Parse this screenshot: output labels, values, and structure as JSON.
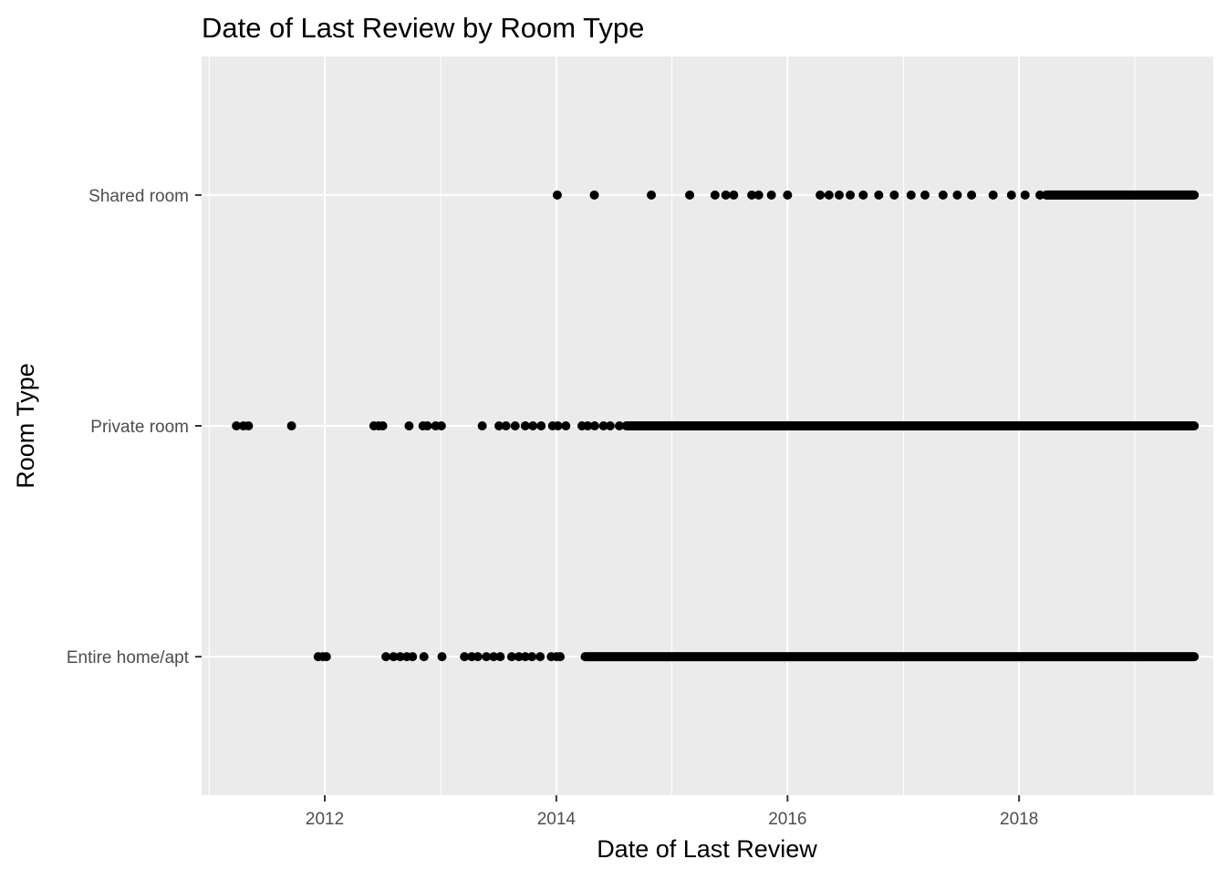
{
  "chart_data": {
    "type": "scatter",
    "title": "Date of Last Review by Room Type",
    "xlabel": "Date of Last Review",
    "ylabel": "Room Type",
    "x_axis_kind": "date",
    "xlim": [
      "2010-12-08",
      "2019-09-06"
    ],
    "x_ticks": [
      2012,
      2014,
      2016,
      2018
    ],
    "x_tick_labels": [
      "2012",
      "2014",
      "2016",
      "2018"
    ],
    "categories": [
      "Entire home/apt",
      "Private room",
      "Shared room"
    ],
    "grid": true,
    "legend": "none",
    "colors": {
      "panel": "#EBEBEB",
      "grid": "#FFFFFF",
      "point": "#000000",
      "text": "#4D4D4D",
      "title": "#000000"
    },
    "series": [
      {
        "category": "Entire home/apt",
        "dates": [
          "2011-12-11",
          "2011-12-26",
          "2012-01-06",
          "2012-07-12",
          "2012-08-05",
          "2012-08-26",
          "2012-09-16",
          "2012-10-04",
          "2012-11-09",
          "2013-01-05",
          "2013-03-17",
          "2013-04-09",
          "2013-04-28",
          "2013-05-25",
          "2013-06-17",
          "2013-07-08",
          "2013-08-13",
          "2013-09-05",
          "2013-09-25",
          "2013-10-16",
          "2013-11-11",
          "2013-12-16",
          "2014-01-02",
          "2014-01-13"
        ],
        "dense_ranges": [
          [
            "2014-04-02",
            "2019-07-08"
          ]
        ]
      },
      {
        "category": "Private room",
        "dates": [
          "2011-03-28",
          "2011-04-19",
          "2011-05-05",
          "2011-09-18",
          "2012-06-04",
          "2012-06-19",
          "2012-07-02",
          "2012-09-23",
          "2012-11-06",
          "2012-11-20",
          "2012-12-16",
          "2013-01-03",
          "2013-05-12",
          "2013-07-04",
          "2013-07-26",
          "2013-08-24",
          "2013-09-25",
          "2013-10-19",
          "2013-11-14",
          "2013-12-20",
          "2014-01-06",
          "2014-01-31",
          "2014-03-23",
          "2014-04-10",
          "2014-05-02",
          "2014-05-30",
          "2014-06-20",
          "2014-07-19"
        ],
        "dense_ranges": [
          [
            "2014-08-10",
            "2019-07-08"
          ]
        ]
      },
      {
        "category": "Shared room",
        "dates": [
          "2014-01-04",
          "2014-05-01",
          "2014-10-28",
          "2015-02-26",
          "2015-05-17",
          "2015-06-20",
          "2015-07-15",
          "2015-09-10",
          "2015-10-02",
          "2015-11-11",
          "2016-01-01",
          "2016-04-13",
          "2016-05-11",
          "2016-06-12",
          "2016-07-17",
          "2016-08-27",
          "2016-10-15",
          "2016-12-03",
          "2017-01-25",
          "2017-03-10",
          "2017-05-06",
          "2017-06-20",
          "2017-08-04",
          "2017-10-11",
          "2017-12-08",
          "2018-01-20",
          "2018-03-08"
        ],
        "dense_ranges": [
          [
            "2018-03-28",
            "2019-07-08"
          ]
        ]
      }
    ]
  }
}
